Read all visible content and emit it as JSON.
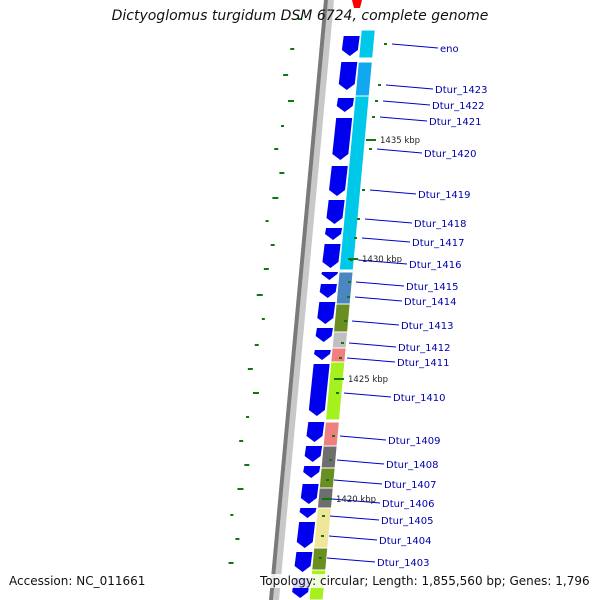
{
  "title": "Dictyoglomus turgidum DSM 6724, complete genome",
  "footer": {
    "accession": "Accession: NC_011661",
    "summary": "Topology: circular; Length: 1,855,560 bp; Genes: 1,796"
  },
  "colors": {
    "backbone": "#7a7a7a",
    "backbone_light": "#c8c8c8",
    "forward_cds": "#0000ee",
    "label_line": "#0000cc",
    "label_text": "#0000aa",
    "gc_skew": "#117711",
    "cyan": "#00c8e8",
    "sky": "#12a8f0",
    "steel": "#4a86c0",
    "olive": "#6b8e23",
    "gray": "#bfbfbf",
    "salmon": "#f08080",
    "lime": "#a6f020",
    "dark_gray": "#6e6e6e",
    "khaki": "#efe69a",
    "red": "#ff0000"
  },
  "scale_marks": [
    {
      "label": "1435 kbp",
      "pos_kbp": 1435
    },
    {
      "label": "1430 kbp",
      "pos_kbp": 1430
    },
    {
      "label": "1425 kbp",
      "pos_kbp": 1425
    },
    {
      "label": "1420 kbp",
      "pos_kbp": 1420
    }
  ],
  "genes": [
    {
      "label": "eno"
    },
    {
      "label": "Dtur_1423"
    },
    {
      "label": "Dtur_1422"
    },
    {
      "label": "Dtur_1421"
    },
    {
      "label": "Dtur_1420"
    },
    {
      "label": "Dtur_1419"
    },
    {
      "label": "Dtur_1418"
    },
    {
      "label": "Dtur_1417"
    },
    {
      "label": "Dtur_1416"
    },
    {
      "label": "Dtur_1415"
    },
    {
      "label": "Dtur_1414"
    },
    {
      "label": "Dtur_1413"
    },
    {
      "label": "Dtur_1412"
    },
    {
      "label": "Dtur_1411"
    },
    {
      "label": "Dtur_1410"
    },
    {
      "label": "Dtur_1409"
    },
    {
      "label": "Dtur_1408"
    },
    {
      "label": "Dtur_1407"
    },
    {
      "label": "Dtur_1406"
    },
    {
      "label": "Dtur_1405"
    },
    {
      "label": "Dtur_1404"
    },
    {
      "label": "Dtur_1403"
    }
  ]
}
